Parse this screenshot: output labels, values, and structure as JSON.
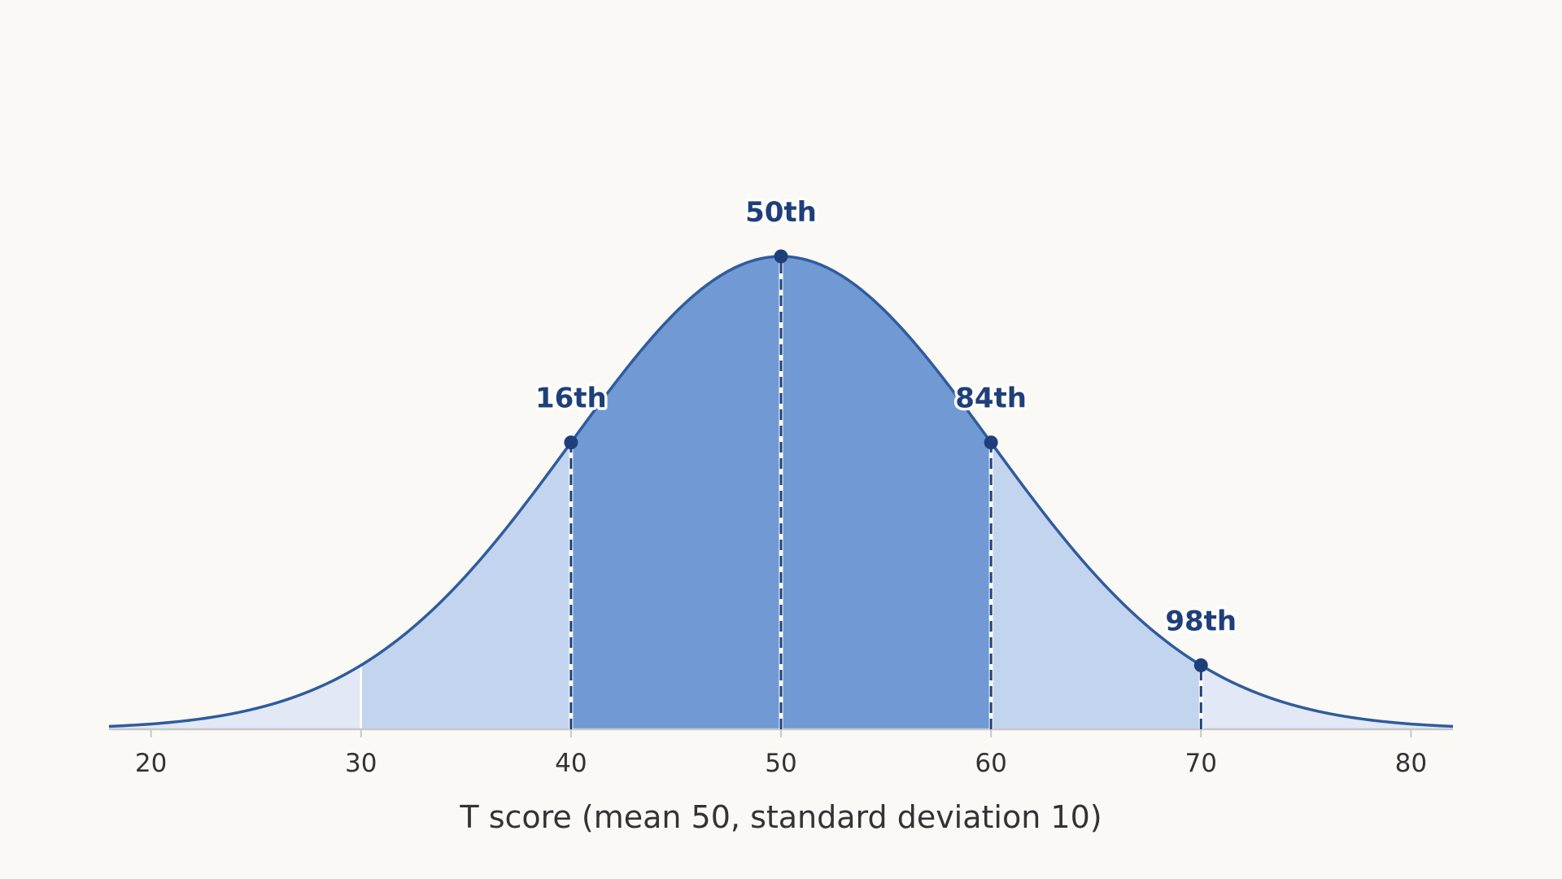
{
  "chart_data": {
    "type": "area",
    "distribution": "normal",
    "mean": 50,
    "sd": 10,
    "xlim": [
      18,
      82
    ],
    "xticks": [
      "20",
      "30",
      "40",
      "50",
      "60",
      "70",
      "80"
    ],
    "xlabel": "T score  (mean 50, standard deviation 10)",
    "title": "",
    "grid": false,
    "bands": [
      {
        "from": 18,
        "to": 30,
        "shade": "outer"
      },
      {
        "from": 30,
        "to": 40,
        "shade": "middle"
      },
      {
        "from": 40,
        "to": 60,
        "shade": "inner"
      },
      {
        "from": 60,
        "to": 70,
        "shade": "middle"
      },
      {
        "from": 70,
        "to": 82,
        "shade": "outer"
      }
    ],
    "markers": [
      {
        "x": 40,
        "label": "16th"
      },
      {
        "x": 50,
        "label": "50th"
      },
      {
        "x": 60,
        "label": "84th"
      },
      {
        "x": 70,
        "label": "98th"
      }
    ],
    "colors": {
      "background": "#faf9f6",
      "outer": "#e2e8f6",
      "middle": "#c3d4ee",
      "inner": "#7199d3",
      "curve": "#2f5c9c",
      "marker": "#1f3f7a",
      "axis": "#c8c8c8",
      "text": "#333333"
    }
  }
}
